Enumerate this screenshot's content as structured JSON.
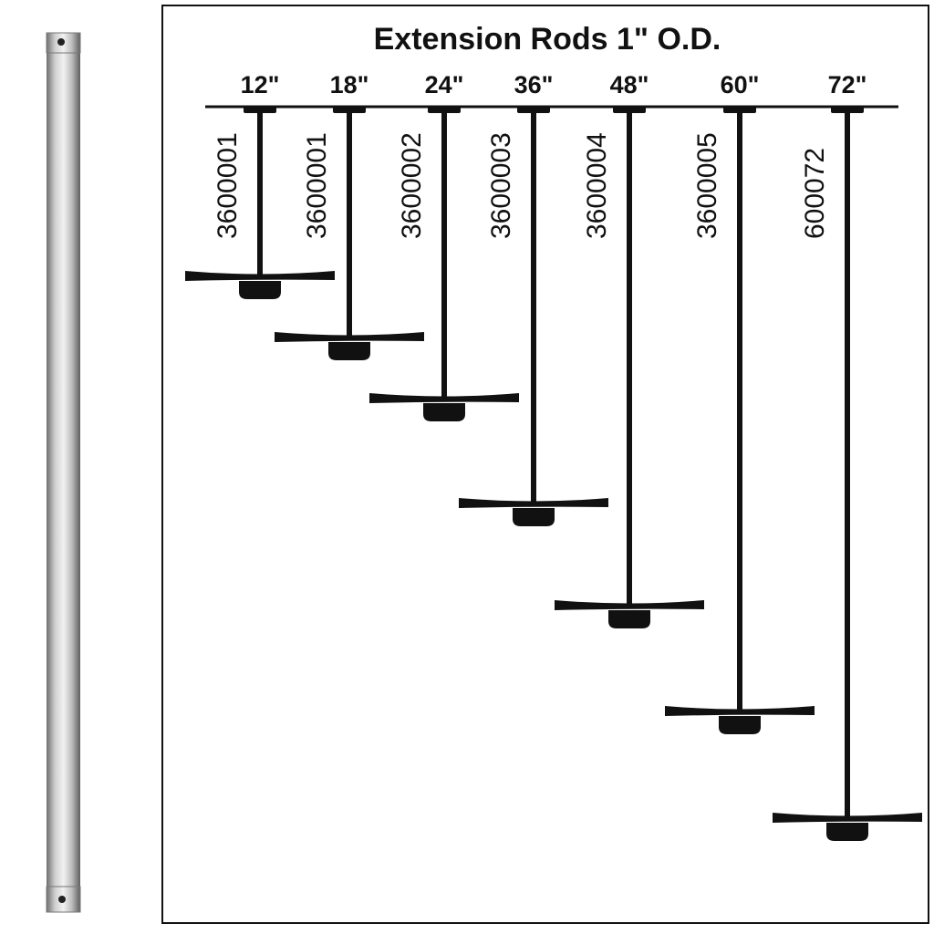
{
  "title": "Extension Rods 1\" O.D.",
  "rods": [
    {
      "length": "12\"",
      "part": "3600001"
    },
    {
      "length": "18\"",
      "part": "3600001"
    },
    {
      "length": "24\"",
      "part": "3600002"
    },
    {
      "length": "36\"",
      "part": "3600003"
    },
    {
      "length": "48\"",
      "part": "3600004"
    },
    {
      "length": "60\"",
      "part": "3600005"
    },
    {
      "length": "72\"",
      "part": "600072"
    }
  ]
}
